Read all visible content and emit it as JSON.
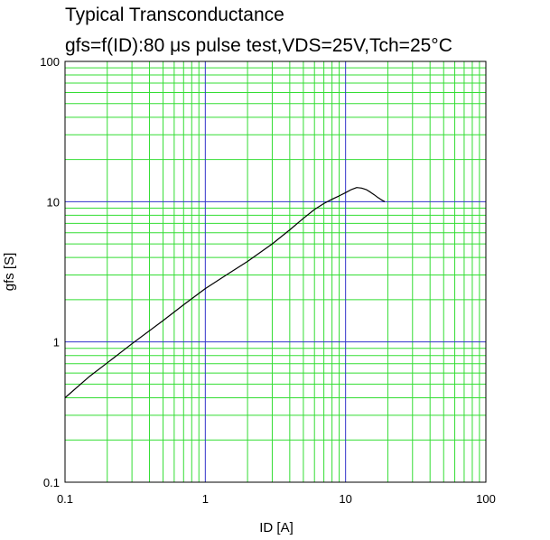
{
  "chart_data": {
    "type": "line",
    "title": "Typical Transconductance",
    "subtitle": "gfs=f(ID):80 μs pulse test,VDS=25V,Tch=25°C",
    "xlabel": "ID [A]",
    "ylabel": "gfs [S]",
    "xscale": "log",
    "yscale": "log",
    "xlim": [
      0.1,
      100
    ],
    "ylim": [
      0.1,
      100
    ],
    "x_ticks": [
      "0.1",
      "1",
      "10",
      "100"
    ],
    "y_ticks": [
      "0.1",
      "1",
      "10",
      "100"
    ],
    "grid": true,
    "colors": {
      "major_grid": "#3333cc",
      "minor_grid": "#33dd33",
      "line": "#000000"
    },
    "series": [
      {
        "x": [
          0.1,
          0.15,
          0.2,
          0.3,
          0.5,
          0.7,
          1,
          1.5,
          2,
          3,
          4,
          5,
          6,
          7,
          8,
          9,
          10,
          11,
          12,
          13,
          14,
          15,
          16,
          17,
          18,
          19
        ],
        "y": [
          0.4,
          0.57,
          0.71,
          0.97,
          1.42,
          1.84,
          2.4,
          3.12,
          3.75,
          5.0,
          6.3,
          7.6,
          8.8,
          9.7,
          10.4,
          11.0,
          11.6,
          12.2,
          12.6,
          12.5,
          12.2,
          11.7,
          11.2,
          10.7,
          10.3,
          10.0
        ]
      }
    ]
  }
}
